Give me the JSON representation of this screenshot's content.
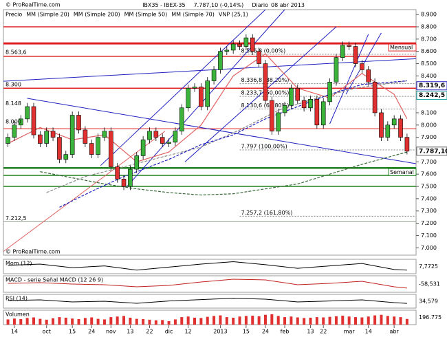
{
  "chart_data": {
    "type": "candlestick",
    "title": "IBX35 - IBEX-35",
    "last_price": "7.787,10 (-0,14%)",
    "period": "Diario",
    "date": "08 abr 2013",
    "watermark": "© ProRealTime.com",
    "legend": [
      {
        "name": "Precio",
        "color": "#555555"
      },
      {
        "name": "MM (Simple 20)",
        "color": "#e06060"
      },
      {
        "name": "MM (Simple 200)",
        "color": "#3a8a3a"
      },
      {
        "name": "MM (Simple 50)",
        "color": "#888888"
      },
      {
        "name": "MM (Simple 70)",
        "color": "#2020c0"
      },
      {
        "name": "VNP (25,1)",
        "color": "#b0b0ff"
      }
    ],
    "up_color": "#3cb43c",
    "down_color": "#e03030",
    "ylim": [
      6.94,
      8.94
    ],
    "xlim": [
      -0.7,
      63.4
    ],
    "yticks": [
      {
        "value": 7.0,
        "label": "7.000"
      },
      {
        "value": 7.1,
        "label": "7.100"
      },
      {
        "value": 7.2,
        "label": "7.200"
      },
      {
        "value": 7.3,
        "label": "7.300"
      },
      {
        "value": 7.4,
        "label": "7.400"
      },
      {
        "value": 7.5,
        "label": "7.500"
      },
      {
        "value": 7.6,
        "label": "7.600"
      },
      {
        "value": 7.7,
        "label": "7.700"
      },
      {
        "value": 7.9,
        "label": "7.900"
      },
      {
        "value": 8.0,
        "label": "8.000"
      },
      {
        "value": 8.1,
        "label": "8.100"
      },
      {
        "value": 8.4,
        "label": "8.400"
      },
      {
        "value": 8.5,
        "label": "8.500"
      },
      {
        "value": 8.6,
        "label": "8.600"
      },
      {
        "value": 8.7,
        "label": "8.700"
      },
      {
        "value": 8.8,
        "label": "8.800"
      },
      {
        "value": 8.9,
        "label": "8.900"
      }
    ],
    "xticks": [
      {
        "value": 1,
        "label": "14"
      },
      {
        "value": 6,
        "label": "oct"
      },
      {
        "value": 10,
        "label": "15"
      },
      {
        "value": 13,
        "label": "24"
      },
      {
        "value": 16,
        "label": "nov"
      },
      {
        "value": 19,
        "label": "13"
      },
      {
        "value": 22,
        "label": "22"
      },
      {
        "value": 25,
        "label": "dic"
      },
      {
        "value": 28,
        "label": "12"
      },
      {
        "value": 33,
        "label": "2013"
      },
      {
        "value": 37,
        "label": "15"
      },
      {
        "value": 40,
        "label": "24"
      },
      {
        "value": 43,
        "label": "feb"
      },
      {
        "value": 47,
        "label": "13"
      },
      {
        "value": 49,
        "label": "22"
      },
      {
        "value": 53,
        "label": "mar"
      },
      {
        "value": 56,
        "label": "14"
      },
      {
        "value": 60,
        "label": "abr"
      }
    ],
    "open": [
      7.85,
      7.9,
      8.0,
      8.05,
      8.15,
      7.92,
      7.85,
      7.95,
      7.9,
      7.72,
      7.76,
      8.08,
      7.96,
      7.85,
      7.76,
      7.9,
      7.95,
      7.66,
      7.56,
      7.5,
      7.64,
      7.75,
      7.88,
      7.95,
      7.9,
      7.85,
      7.86,
      7.95,
      8.14,
      8.3,
      8.31,
      8.15,
      8.36,
      8.45,
      8.6,
      8.61,
      8.66,
      8.64,
      8.71,
      8.6,
      8.5,
      8.2,
      7.95,
      8.1,
      8.16,
      8.3,
      8.2,
      8.14,
      8.21,
      8.0,
      8.19,
      8.35,
      8.55,
      8.65,
      8.64,
      8.5,
      8.45,
      8.35,
      8.1,
      7.9,
      8.0,
      8.05,
      7.9
    ],
    "high": [
      7.93,
      8.03,
      8.08,
      8.18,
      8.18,
      7.95,
      7.98,
      7.98,
      7.93,
      7.79,
      8.11,
      8.11,
      7.99,
      7.88,
      7.93,
      7.98,
      7.98,
      7.69,
      7.59,
      7.67,
      7.78,
      7.91,
      7.98,
      7.98,
      7.93,
      7.89,
      7.98,
      8.17,
      8.33,
      8.34,
      8.34,
      8.39,
      8.48,
      8.63,
      8.64,
      8.69,
      8.69,
      8.74,
      8.74,
      8.63,
      8.53,
      8.23,
      8.13,
      8.19,
      8.33,
      8.33,
      8.23,
      8.24,
      8.24,
      8.22,
      8.38,
      8.58,
      8.68,
      8.68,
      8.67,
      8.53,
      8.48,
      8.38,
      8.13,
      8.03,
      8.08,
      8.08,
      7.93
    ],
    "low": [
      7.82,
      7.87,
      7.97,
      8.02,
      7.89,
      7.82,
      7.82,
      7.87,
      7.69,
      7.69,
      7.73,
      7.93,
      7.82,
      7.73,
      7.73,
      7.87,
      7.63,
      7.53,
      7.47,
      7.47,
      7.61,
      7.72,
      7.85,
      7.87,
      7.82,
      7.82,
      7.83,
      7.92,
      8.11,
      8.27,
      8.12,
      8.12,
      8.33,
      8.42,
      8.57,
      8.58,
      8.61,
      8.61,
      8.57,
      8.47,
      8.17,
      7.92,
      7.92,
      8.07,
      8.13,
      8.17,
      8.11,
      8.11,
      7.97,
      7.97,
      8.16,
      8.32,
      8.52,
      8.61,
      8.47,
      8.42,
      8.32,
      8.07,
      7.87,
      7.87,
      7.97,
      7.87,
      7.76
    ],
    "close": [
      7.9,
      8.0,
      8.05,
      8.15,
      7.92,
      7.85,
      7.95,
      7.9,
      7.72,
      7.76,
      8.08,
      7.96,
      7.85,
      7.76,
      7.9,
      7.95,
      7.66,
      7.56,
      7.5,
      7.64,
      7.75,
      7.88,
      7.95,
      7.9,
      7.85,
      7.86,
      7.95,
      8.14,
      8.3,
      8.31,
      8.15,
      8.36,
      8.45,
      8.6,
      8.61,
      8.66,
      8.64,
      8.71,
      8.6,
      8.5,
      8.2,
      7.95,
      8.1,
      8.16,
      8.3,
      8.2,
      8.14,
      8.21,
      8.0,
      8.19,
      8.35,
      8.55,
      8.65,
      8.64,
      8.5,
      8.45,
      8.35,
      8.1,
      7.9,
      8.0,
      8.05,
      7.9,
      7.787
    ],
    "moving_averages": [
      {
        "name": "MM (Simple 20)",
        "color": "#e06060",
        "x": [
          0,
          5,
          10,
          15,
          20,
          25,
          30,
          35,
          40,
          45,
          50,
          55,
          60,
          62
        ],
        "values": [
          7.85,
          7.98,
          7.88,
          7.92,
          7.7,
          7.78,
          8.0,
          8.4,
          8.58,
          8.3,
          8.22,
          8.42,
          8.25,
          8.05
        ]
      },
      {
        "name": "MM (Simple 200)",
        "color": "#3a6a3a",
        "x": [
          5,
          10,
          15,
          20,
          25,
          30,
          35,
          40,
          45,
          50,
          55,
          62
        ],
        "values": [
          7.62,
          7.57,
          7.52,
          7.48,
          7.45,
          7.43,
          7.44,
          7.48,
          7.52,
          7.6,
          7.68,
          7.78
        ]
      },
      {
        "name": "MM (Simple 50)",
        "color": "#888888",
        "x": [
          6,
          12,
          18,
          24,
          30,
          36,
          42,
          48,
          54,
          62
        ],
        "values": [
          7.45,
          7.58,
          7.66,
          7.74,
          7.82,
          7.96,
          8.12,
          8.22,
          8.3,
          8.36
        ]
      },
      {
        "name": "MM (Simple 70)",
        "color": "#2020c0",
        "x": [
          8,
          13,
          18,
          25,
          30,
          35,
          40,
          45,
          50,
          55,
          62
        ],
        "values": [
          7.33,
          7.46,
          7.58,
          7.72,
          7.84,
          7.92,
          8.05,
          8.15,
          8.25,
          8.33,
          8.36
        ]
      }
    ],
    "volume_profile": {
      "color": "#b8b8f0",
      "xlim": [
        0,
        200
      ],
      "levels": [
        8.65,
        8.6,
        8.55,
        8.5,
        8.45,
        8.4,
        8.35,
        8.3,
        8.25,
        8.2,
        8.15,
        8.1,
        8.05,
        8.0,
        7.95,
        7.9,
        7.85,
        7.8,
        7.75,
        7.7,
        7.65,
        7.6,
        7.55
      ],
      "values": [
        140,
        100,
        110,
        80,
        60,
        40,
        25,
        20,
        15,
        30,
        20,
        40,
        25,
        60,
        180,
        140,
        160,
        70,
        60,
        30,
        15,
        10,
        5
      ]
    },
    "levels": [
      {
        "value": 8.8,
        "color": "#e02020",
        "width": 1.5
      },
      {
        "value": 8.665,
        "color": "#e02020",
        "width": 3
      },
      {
        "value": 8.56,
        "color": "#e02020",
        "width": 1.5
      },
      {
        "value": 8.3,
        "color": "#e02020",
        "width": 1.5
      },
      {
        "value": 7.97,
        "color": "#e02020",
        "width": 1
      },
      {
        "value": 7.65,
        "color": "#208020",
        "width": 2.5
      },
      {
        "value": 7.59,
        "color": "#208020",
        "width": 1.5
      },
      {
        "value": 7.5,
        "color": "#208020",
        "width": 1.5
      },
      {
        "value": 7.2125,
        "color": "#90a090",
        "width": 1
      }
    ],
    "level_tags": [
      {
        "value": 8.665,
        "label": "Mensual",
        "color": "#e02020"
      },
      {
        "value": 7.65,
        "label": "Semanal",
        "color": "#208020"
      }
    ],
    "price_markers": [
      {
        "value": 8.3196,
        "label": "8.319,6",
        "color": "#2020c0"
      },
      {
        "value": 8.2425,
        "label": "8.242,5",
        "color": "#20a0a0"
      },
      {
        "value": 7.7871,
        "label": "7.787,10",
        "color": "#606060"
      }
    ],
    "left_labels": [
      {
        "value": 8.5636,
        "label": "8.563,6"
      },
      {
        "value": 8.3,
        "label": "8.300"
      },
      {
        "value": 8.148,
        "label": "8.148"
      },
      {
        "value": 8.0,
        "label": "8.000"
      },
      {
        "value": 7.2125,
        "label": "7.212,5"
      }
    ],
    "fibonacci": {
      "x": 36,
      "color": "#808080",
      "levels": [
        {
          "value": 8.5768,
          "label": "8.576,8 (0,00%)"
        },
        {
          "value": 8.3368,
          "label": "8.336,8 (38,20%)"
        },
        {
          "value": 8.2337,
          "label": "8.233,7 (50,00%)"
        },
        {
          "value": 8.1306,
          "label": "8.130,6 (61,80%)"
        },
        {
          "value": 7.797,
          "label": "7.797 (100,00%)"
        },
        {
          "value": 7.2572,
          "label": "7.257,2 (161,80%)"
        }
      ]
    },
    "drawings": [
      {
        "color": "#2020c0",
        "x": [
          14.4,
          40
        ],
        "y": [
          7.67,
          8.94
        ]
      },
      {
        "color": "#2020c0",
        "x": [
          18.5,
          43
        ],
        "y": [
          7.5,
          8.94
        ]
      },
      {
        "color": "#2020c0",
        "x": [
          27.5,
          51
        ],
        "y": [
          7.7,
          8.8
        ]
      },
      {
        "color": "#2020c0",
        "x": [
          3,
          63.4
        ],
        "y": [
          8.217,
          7.685
        ]
      },
      {
        "color": "#2020c0",
        "x": [
          -0.7,
          63.4
        ],
        "y": [
          8.357,
          8.54
        ]
      },
      {
        "color": "#2020c0",
        "x": [
          50,
          56
        ],
        "y": [
          8.01,
          8.74
        ]
      },
      {
        "color": "#2020c0",
        "x": [
          52.5,
          58
        ],
        "y": [
          8.25,
          8.75
        ]
      },
      {
        "color": "#e06060",
        "x": [
          -0.7,
          24.4
        ],
        "y": [
          6.97,
          7.95
        ]
      }
    ],
    "panels": [
      {
        "name": "Mom (12)",
        "value_label": "7,7725",
        "color": "#000000",
        "ylim": [
          -600,
          600
        ],
        "x": [
          0,
          5,
          10,
          15,
          20,
          25,
          30,
          35,
          40,
          45,
          50,
          55,
          60,
          62
        ],
        "values": [
          100,
          200,
          -100,
          50,
          -300,
          -50,
          200,
          400,
          150,
          -150,
          50,
          250,
          -250,
          -300
        ]
      },
      {
        "name": "MACD - serie Señal  MACD (12 26 9)",
        "value_label": "-58,531",
        "color": "#c02020",
        "ylim": [
          -120,
          120
        ],
        "x": [
          0,
          5,
          10,
          15,
          20,
          25,
          30,
          35,
          40,
          45,
          50,
          55,
          60,
          62
        ],
        "values": [
          10,
          20,
          0,
          -10,
          -40,
          -20,
          30,
          70,
          60,
          -10,
          10,
          40,
          -40,
          -58.531
        ]
      },
      {
        "name": "RSI (14)",
        "value_label": "34,579",
        "color": "#000000",
        "ylim": [
          0,
          100
        ],
        "x": [
          0,
          5,
          10,
          15,
          20,
          25,
          30,
          35,
          40,
          45,
          50,
          55,
          60,
          62
        ],
        "values": [
          55,
          60,
          45,
          50,
          35,
          52,
          62,
          72,
          65,
          45,
          52,
          60,
          40,
          34.579
        ]
      },
      {
        "name": "Volumen",
        "value_label": "196.775",
        "color": "#e03030",
        "ylim": [
          0,
          500000
        ],
        "bars": true,
        "values": [
          180000,
          210000,
          190000,
          230000,
          250000,
          200000,
          170000,
          220000,
          260000,
          240000,
          210000,
          190000,
          230000,
          250000,
          200000,
          180000,
          260000,
          280000,
          300000,
          240000,
          200000,
          190000,
          170000,
          150000,
          160000,
          120000,
          180000,
          260000,
          280000,
          240000,
          230000,
          270000,
          300000,
          320000,
          260000,
          240000,
          280000,
          300000,
          310000,
          290000,
          340000,
          360000,
          300000,
          260000,
          280000,
          250000,
          230000,
          240000,
          260000,
          250000,
          270000,
          290000,
          310000,
          280000,
          260000,
          250000,
          280000,
          320000,
          340000,
          300000,
          280000,
          260000,
          196775
        ]
      }
    ]
  }
}
